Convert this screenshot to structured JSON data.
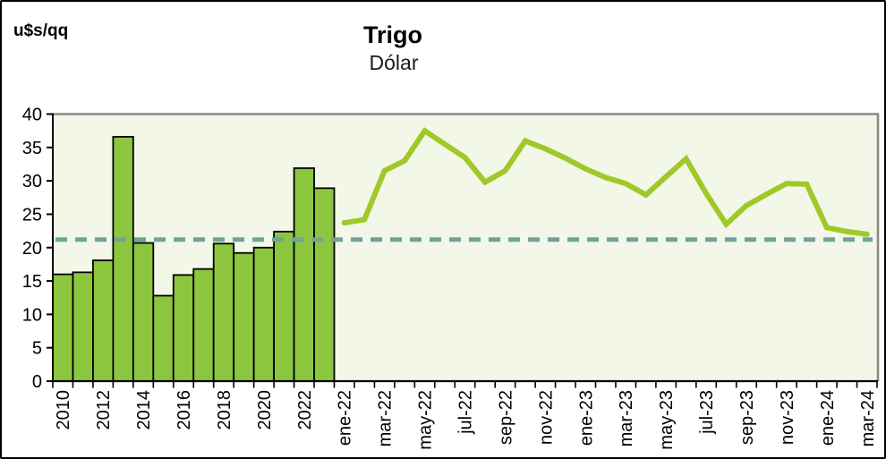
{
  "header": {
    "unit_label": "u$s/qq",
    "title": "Trigo",
    "subtitle": "Dólar"
  },
  "chart_data": {
    "type": "combo-bar-line",
    "title": "Trigo",
    "subtitle": "Dólar",
    "ylabel": "u$s/qq",
    "xlabel": "",
    "ylim": [
      0,
      40
    ],
    "ytick_step": 5,
    "gridlines": "none",
    "legend_position": "none",
    "bars": {
      "name": "annual-average-price",
      "categories": [
        "2010",
        "2011",
        "2012",
        "2013",
        "2014",
        "2015",
        "2016",
        "2017",
        "2018",
        "2019",
        "2020",
        "2021",
        "2022",
        "2023"
      ],
      "values": [
        16.0,
        16.3,
        18.1,
        36.6,
        20.7,
        12.8,
        15.9,
        16.8,
        20.6,
        19.2,
        20.0,
        22.4,
        31.9,
        28.9
      ],
      "labeled_ticks": [
        "2010",
        "2012",
        "2014",
        "2016",
        "2018",
        "2020",
        "2022"
      ]
    },
    "line": {
      "name": "monthly-price",
      "categories": [
        "ene-22",
        "feb-22",
        "mar-22",
        "abr-22",
        "may-22",
        "jun-22",
        "jul-22",
        "ago-22",
        "sep-22",
        "oct-22",
        "nov-22",
        "dic-22",
        "ene-23",
        "feb-23",
        "mar-23",
        "abr-23",
        "may-23",
        "jun-23",
        "jul-23",
        "ago-23",
        "sep-23",
        "oct-23",
        "nov-23",
        "dic-23",
        "ene-24",
        "feb-24",
        "mar-24"
      ],
      "values": [
        23.7,
        24.2,
        31.5,
        33.0,
        37.5,
        35.5,
        33.5,
        29.8,
        31.5,
        36.0,
        34.8,
        33.4,
        31.8,
        30.5,
        29.6,
        27.9,
        30.6,
        33.3,
        28.1,
        23.5,
        26.3,
        28.0,
        29.6,
        29.5,
        23.0,
        22.4,
        22.0
      ],
      "labeled_ticks": [
        "ene-22",
        "mar-22",
        "may-22",
        "jul-22",
        "sep-22",
        "nov-22",
        "ene-23",
        "mar-23",
        "may-23",
        "jul-23",
        "sep-23",
        "nov-23",
        "ene-24",
        "mar-24"
      ]
    },
    "average_line": {
      "value": 21.2,
      "style": "dashed"
    },
    "colors": {
      "bar_fill": "#8cc63f",
      "bar_stroke": "#000000",
      "line": "#9ec929",
      "average": "#6fa39b",
      "plot_bg": "#f3f7e7",
      "plot_border": "#8a8a8a",
      "axis": "#000000",
      "text": "#000000"
    }
  }
}
